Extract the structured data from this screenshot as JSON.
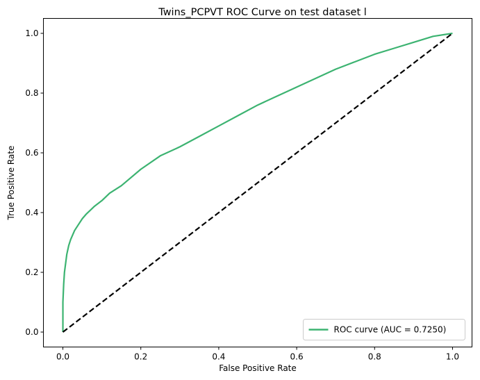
{
  "chart_data": {
    "type": "line",
    "title": "Twins_PCPVT ROC Curve on test dataset l",
    "xlabel": "False Positive Rate",
    "ylabel": "True Positive Rate",
    "xlim": [
      -0.05,
      1.05
    ],
    "ylim": [
      -0.05,
      1.05
    ],
    "xticks": [
      0.0,
      0.2,
      0.4,
      0.6,
      0.8,
      1.0
    ],
    "xtick_labels": [
      "0.0",
      "0.2",
      "0.4",
      "0.6",
      "0.8",
      "1.0"
    ],
    "yticks": [
      0.0,
      0.2,
      0.4,
      0.6,
      0.8,
      1.0
    ],
    "ytick_labels": [
      "0.0",
      "0.2",
      "0.4",
      "0.6",
      "0.8",
      "1.0"
    ],
    "grid": false,
    "legend_position": "lower-right",
    "series": [
      {
        "name": "ROC curve (AUC = 0.7250)",
        "color": "#3cb371",
        "style": "solid",
        "x": [
          0.0,
          0.0,
          0.002,
          0.004,
          0.007,
          0.01,
          0.015,
          0.02,
          0.03,
          0.04,
          0.05,
          0.06,
          0.08,
          0.1,
          0.12,
          0.15,
          0.2,
          0.25,
          0.3,
          0.35,
          0.4,
          0.45,
          0.5,
          0.55,
          0.6,
          0.65,
          0.7,
          0.75,
          0.8,
          0.85,
          0.9,
          0.95,
          1.0
        ],
        "y": [
          0.0,
          0.1,
          0.16,
          0.2,
          0.23,
          0.26,
          0.29,
          0.31,
          0.34,
          0.36,
          0.38,
          0.395,
          0.42,
          0.44,
          0.465,
          0.49,
          0.545,
          0.59,
          0.62,
          0.655,
          0.69,
          0.725,
          0.76,
          0.79,
          0.82,
          0.85,
          0.88,
          0.905,
          0.93,
          0.95,
          0.97,
          0.99,
          1.0
        ]
      },
      {
        "name": "",
        "color": "#000000",
        "style": "dashed",
        "x": [
          0.0,
          1.0
        ],
        "y": [
          0.0,
          1.0
        ]
      }
    ],
    "legend": [
      {
        "label": "ROC curve (AUC = 0.7250)",
        "color": "#3cb371"
      }
    ]
  }
}
